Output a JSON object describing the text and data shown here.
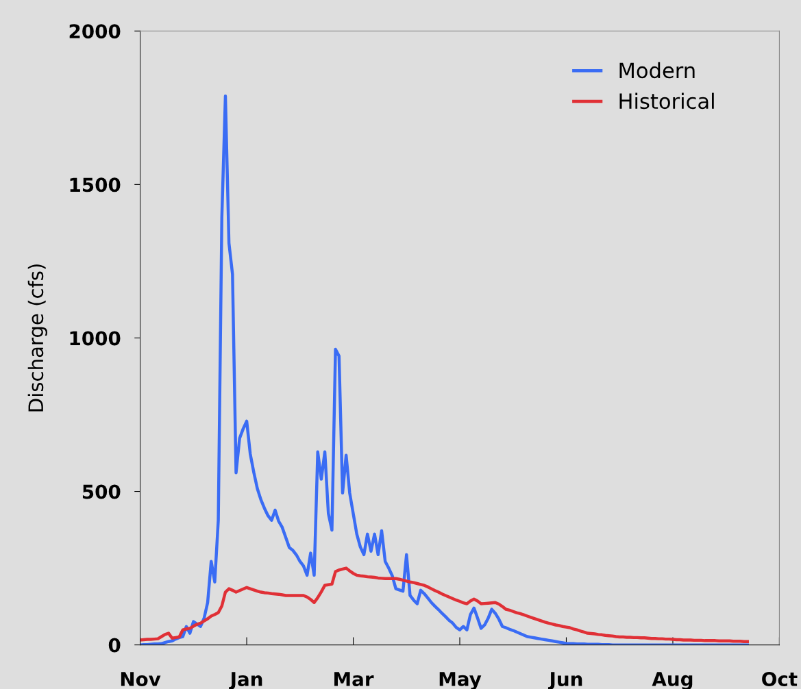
{
  "chart_data": {
    "type": "line",
    "ylabel": "Discharge (cfs)",
    "categories": [
      "Nov",
      null,
      null,
      null,
      null,
      null,
      null,
      null,
      null,
      null,
      null,
      null,
      null,
      null,
      null,
      null,
      null,
      null,
      null,
      null,
      null,
      null,
      null,
      null,
      null,
      null,
      null,
      null,
      null,
      null,
      "Jan",
      null,
      null,
      null,
      null,
      null,
      null,
      null,
      null,
      null,
      null,
      null,
      null,
      null,
      null,
      null,
      null,
      null,
      null,
      null,
      null,
      null,
      null,
      null,
      null,
      null,
      null,
      null,
      null,
      null,
      "Mar",
      null,
      null,
      null,
      null,
      null,
      null,
      null,
      null,
      null,
      null,
      null,
      null,
      null,
      null,
      null,
      null,
      null,
      null,
      null,
      null,
      null,
      null,
      null,
      null,
      null,
      null,
      null,
      null,
      null,
      "May",
      null,
      null,
      null,
      null,
      null,
      null,
      null,
      null,
      null,
      null,
      null,
      null,
      null,
      null,
      null,
      null,
      null,
      null,
      null,
      null,
      null,
      null,
      null,
      null,
      null,
      null,
      null,
      null,
      null,
      "Jun",
      null,
      null,
      null,
      null,
      null,
      null,
      null,
      null,
      null,
      null,
      null,
      null,
      null,
      null,
      null,
      null,
      null,
      null,
      null,
      null,
      null,
      null,
      null,
      null,
      null,
      null,
      null,
      null,
      null,
      "Aug",
      null,
      null,
      null,
      null,
      null,
      null,
      null,
      null,
      null,
      null,
      null,
      null,
      null,
      null,
      null,
      null,
      null,
      null,
      null,
      null,
      null,
      null,
      null,
      null,
      null,
      null,
      null,
      null,
      null,
      "Oct"
    ],
    "ylim": [
      0,
      2000
    ],
    "yticks": [
      0,
      500,
      1000,
      1500,
      2000
    ],
    "grid": false,
    "legend": "top right",
    "marker": "none",
    "line_style": "solid",
    "series": [
      {
        "name": "Modern",
        "color": "#3a6cf4",
        "values": [
          0,
          1,
          1,
          2,
          3,
          3,
          4,
          8,
          11,
          13,
          19,
          24,
          27,
          60,
          38,
          76,
          68,
          60,
          87,
          138,
          272,
          205,
          406,
          1394,
          1788,
          1309,
          1208,
          561,
          673,
          704,
          729,
          622,
          562,
          509,
          473,
          445,
          421,
          406,
          439,
          403,
          383,
          350,
          317,
          308,
          293,
          272,
          257,
          227,
          299,
          227,
          629,
          540,
          629,
          428,
          374,
          963,
          941,
          495,
          618,
          495,
          428,
          361,
          319,
          294,
          361,
          305,
          361,
          294,
          372,
          272,
          250,
          225,
          183,
          179,
          175,
          294,
          161,
          146,
          134,
          178,
          167,
          153,
          138,
          126,
          115,
          103,
          92,
          80,
          71,
          57,
          49,
          60,
          49,
          99,
          120,
          88,
          54,
          65,
          87,
          116,
          103,
          84,
          60,
          56,
          51,
          47,
          42,
          37,
          32,
          27,
          25,
          23,
          21,
          19,
          17,
          15,
          13,
          11,
          9,
          7,
          5,
          4,
          4,
          3,
          3,
          3,
          2,
          2,
          2,
          2,
          1,
          1,
          1,
          0,
          0,
          0,
          0,
          0,
          0,
          0,
          0,
          0,
          0,
          0,
          0,
          0,
          0,
          0,
          0,
          0,
          0,
          0,
          0,
          0,
          0,
          0,
          0,
          0,
          0,
          0,
          0,
          0,
          0,
          0,
          0,
          0,
          0,
          0,
          0,
          0,
          0,
          0,
          null,
          null,
          null,
          null,
          null,
          null,
          null,
          null,
          null
        ]
      },
      {
        "name": "Historical",
        "color": "#e03036",
        "values": [
          16,
          17,
          18,
          18,
          19,
          20,
          27,
          34,
          38,
          22,
          24,
          26,
          49,
          52,
          54,
          61,
          67,
          71,
          78,
          85,
          94,
          99,
          105,
          127,
          172,
          183,
          178,
          172,
          177,
          182,
          187,
          183,
          179,
          175,
          172,
          170,
          169,
          167,
          166,
          165,
          163,
          161,
          161,
          161,
          161,
          161,
          161,
          156,
          148,
          138,
          154,
          173,
          194,
          196,
          198,
          239,
          244,
          247,
          250,
          241,
          233,
          227,
          225,
          224,
          222,
          221,
          220,
          218,
          217,
          216,
          216,
          216,
          216,
          214,
          211,
          208,
          205,
          203,
          200,
          197,
          194,
          189,
          183,
          177,
          172,
          166,
          161,
          156,
          151,
          146,
          142,
          137,
          134,
          143,
          149,
          143,
          134,
          135,
          136,
          137,
          138,
          133,
          125,
          116,
          113,
          109,
          105,
          102,
          98,
          94,
          90,
          86,
          82,
          78,
          74,
          71,
          68,
          65,
          63,
          60,
          58,
          56,
          52,
          49,
          45,
          42,
          38,
          37,
          36,
          34,
          33,
          31,
          30,
          29,
          27,
          26,
          26,
          25,
          25,
          24,
          24,
          23,
          23,
          22,
          21,
          21,
          20,
          20,
          19,
          19,
          18,
          17,
          17,
          16,
          16,
          16,
          15,
          15,
          15,
          14,
          14,
          14,
          14,
          13,
          13,
          13,
          13,
          12,
          12,
          12,
          11,
          11,
          null,
          null,
          null,
          null,
          null,
          null,
          null,
          null,
          null
        ]
      }
    ]
  }
}
